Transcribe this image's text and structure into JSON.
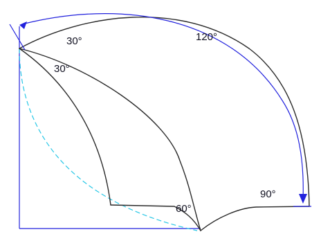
{
  "labels": {
    "angle_outer_top": "30°",
    "angle_inner_top": "30°",
    "angle_dimension": "120°",
    "angle_bottom_left": "60°",
    "angle_bottom_right": "90°"
  },
  "colors": {
    "outline": "#2a2a2a",
    "dimension": "#2222dd",
    "dashed_arc": "#27c7e6"
  }
}
